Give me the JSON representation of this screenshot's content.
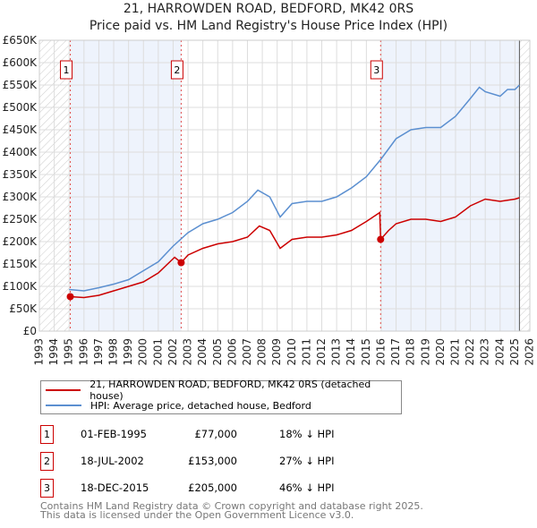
{
  "title": "21, HARROWDEN ROAD, BEDFORD, MK42 0RS",
  "subtitle": "Price paid vs. HM Land Registry's House Price Index (HPI)",
  "chart_data": {
    "type": "line",
    "xlim": [
      1993,
      2026
    ],
    "ylim": [
      0,
      650000
    ],
    "x_ticks": [
      "1993",
      "1994",
      "1995",
      "1996",
      "1997",
      "1998",
      "1999",
      "2000",
      "2001",
      "2002",
      "2003",
      "2004",
      "2005",
      "2006",
      "2007",
      "2008",
      "2009",
      "2010",
      "2011",
      "2012",
      "2013",
      "2014",
      "2015",
      "2016",
      "2017",
      "2018",
      "2019",
      "2020",
      "2021",
      "2022",
      "2023",
      "2024",
      "2025",
      "2026"
    ],
    "y_ticks": [
      "£0",
      "£50K",
      "£100K",
      "£150K",
      "£200K",
      "£250K",
      "£300K",
      "£350K",
      "£400K",
      "£450K",
      "£500K",
      "£550K",
      "£600K",
      "£650K"
    ],
    "series": [
      {
        "name": "21, HARROWDEN ROAD, BEDFORD, MK42 0RS (detached house)",
        "color": "#cc0000",
        "x": [
          1995.08,
          1996,
          1997,
          1998,
          1999,
          2000,
          2001,
          2002.1,
          2002.54,
          2003,
          2004,
          2005,
          2006,
          2007,
          2007.8,
          2008.5,
          2009.2,
          2010,
          2011,
          2012,
          2013,
          2014,
          2015,
          2015.9,
          2015.96,
          2016.5,
          2017,
          2018,
          2019,
          2020,
          2021,
          2022,
          2023,
          2024,
          2025,
          2025.3
        ],
        "values": [
          77000,
          75000,
          80000,
          90000,
          100000,
          110000,
          130000,
          165000,
          153000,
          170000,
          185000,
          195000,
          200000,
          210000,
          235000,
          225000,
          185000,
          205000,
          210000,
          210000,
          215000,
          225000,
          245000,
          265000,
          205000,
          225000,
          240000,
          250000,
          250000,
          245000,
          255000,
          280000,
          295000,
          290000,
          295000,
          298000
        ]
      },
      {
        "name": "HPI: Average price, detached house, Bedford",
        "color": "#5b8fd0",
        "x": [
          1995,
          1996,
          1997,
          1998,
          1999,
          2000,
          2001,
          2002,
          2003,
          2004,
          2005,
          2006,
          2007,
          2007.7,
          2008.5,
          2009.2,
          2010,
          2011,
          2012,
          2013,
          2014,
          2015,
          2016,
          2017,
          2018,
          2019,
          2020,
          2021,
          2022,
          2022.6,
          2023,
          2024,
          2024.5,
          2025,
          2025.3
        ],
        "values": [
          93000,
          90000,
          97000,
          105000,
          115000,
          135000,
          155000,
          190000,
          220000,
          240000,
          250000,
          265000,
          290000,
          315000,
          300000,
          255000,
          285000,
          290000,
          290000,
          300000,
          320000,
          345000,
          385000,
          430000,
          450000,
          455000,
          455000,
          480000,
          520000,
          545000,
          535000,
          525000,
          540000,
          540000,
          550000
        ]
      }
    ],
    "sales": [
      {
        "label": "1",
        "date": "01-FEB-1995",
        "x": 1995.08,
        "price": "£77,000",
        "value": 77000,
        "hpi": "18% ↓ HPI"
      },
      {
        "label": "2",
        "date": "18-JUL-2002",
        "x": 2002.54,
        "price": "£153,000",
        "value": 153000,
        "hpi": "27% ↓ HPI"
      },
      {
        "label": "3",
        "date": "18-DEC-2015",
        "x": 2015.96,
        "price": "£205,000",
        "value": 205000,
        "hpi": "46% ↓ HPI"
      }
    ],
    "data_end": 2025.3
  },
  "footer": [
    "Contains HM Land Registry data © Crown copyright and database right 2025.",
    "This data is licensed under the Open Government Licence v3.0."
  ]
}
